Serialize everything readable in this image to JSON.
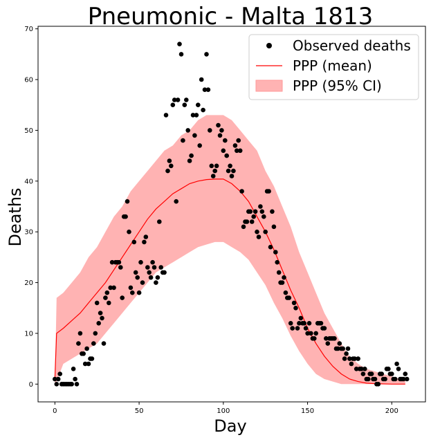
{
  "chart_data": {
    "type": "scatter",
    "title": "Pneumonic - Malta 1813",
    "xlabel": "Day",
    "ylabel": "Deaths",
    "xlim": [
      -10,
      220
    ],
    "ylim": [
      -3.5,
      70.5
    ],
    "xticks": [
      0,
      50,
      100,
      150,
      200
    ],
    "yticks": [
      0,
      10,
      20,
      30,
      40,
      50,
      60,
      70
    ],
    "grid": false,
    "legend_position": "top-right",
    "legend": [
      {
        "label": "Observed deaths",
        "kind": "marker",
        "color": "#000000"
      },
      {
        "label": "PPP (mean)",
        "kind": "line",
        "color": "#ff0000"
      },
      {
        "label": "PPP (95% CI)",
        "kind": "band",
        "color": "#ff9999"
      }
    ],
    "series": [
      {
        "name": "Observed deaths",
        "kind": "scatter",
        "color": "#000000",
        "x": [
          0,
          1,
          2,
          3,
          4,
          5,
          6,
          7,
          8,
          9,
          10,
          11,
          12,
          13,
          14,
          15,
          16,
          17,
          18,
          19,
          20,
          21,
          22,
          23,
          24,
          25,
          26,
          27,
          28,
          29,
          30,
          31,
          32,
          33,
          34,
          35,
          36,
          37,
          38,
          39,
          40,
          41,
          42,
          43,
          44,
          45,
          46,
          47,
          48,
          49,
          50,
          51,
          52,
          53,
          54,
          55,
          56,
          57,
          58,
          59,
          60,
          61,
          62,
          63,
          64,
          65,
          66,
          67,
          68,
          69,
          70,
          71,
          72,
          73,
          74,
          75,
          76,
          77,
          78,
          79,
          80,
          81,
          82,
          83,
          84,
          85,
          86,
          87,
          88,
          89,
          90,
          91,
          92,
          93,
          94,
          95,
          96,
          97,
          98,
          99,
          100,
          101,
          102,
          103,
          104,
          105,
          106,
          107,
          108,
          109,
          110,
          111,
          112,
          113,
          114,
          115,
          116,
          117,
          118,
          119,
          120,
          121,
          122,
          123,
          124,
          125,
          126,
          127,
          128,
          129,
          130,
          131,
          132,
          133,
          134,
          135,
          136,
          137,
          138,
          139,
          140,
          141,
          142,
          143,
          144,
          145,
          146,
          147,
          148,
          149,
          150,
          151,
          152,
          153,
          154,
          155,
          156,
          157,
          158,
          159,
          160,
          161,
          162,
          163,
          164,
          165,
          166,
          167,
          168,
          169,
          170,
          171,
          172,
          173,
          174,
          175,
          176,
          177,
          178,
          179,
          180,
          181,
          182,
          183,
          184,
          185,
          186,
          187,
          188,
          189,
          190,
          191,
          192,
          193,
          194,
          195,
          196,
          197,
          198,
          199,
          200,
          201,
          202,
          203,
          204,
          205,
          206,
          207,
          208,
          209
        ],
        "y": [
          1,
          0,
          1,
          2,
          0,
          0,
          0,
          0,
          0,
          0,
          0,
          3,
          1,
          0,
          8,
          10,
          6,
          6,
          4,
          7,
          4,
          5,
          5,
          8,
          10,
          16,
          12,
          14,
          13,
          8,
          17,
          18,
          16,
          19,
          24,
          19,
          24,
          24,
          24,
          23,
          17,
          33,
          33,
          36,
          30,
          19,
          18,
          28,
          22,
          21,
          18,
          24,
          20,
          28,
          29,
          23,
          22,
          21,
          24,
          23,
          20,
          21,
          32,
          23,
          22,
          22,
          53,
          42,
          44,
          43,
          55,
          56,
          36,
          56,
          67,
          65,
          48,
          55,
          56,
          50,
          44,
          45,
          53,
          49,
          53,
          55,
          47,
          60,
          54,
          58,
          65,
          58,
          50,
          43,
          41,
          42,
          43,
          51,
          49,
          50,
          46,
          48,
          45,
          42,
          43,
          41,
          42,
          47,
          46,
          48,
          46,
          38,
          31,
          32,
          32,
          34,
          34,
          32,
          33,
          34,
          30,
          29,
          35,
          34,
          33,
          30,
          38,
          38,
          27,
          34,
          31,
          26,
          24,
          22,
          20,
          20,
          21,
          18,
          17,
          17,
          12,
          11,
          16,
          15,
          11,
          12,
          13,
          12,
          12,
          11,
          10,
          12,
          10,
          9,
          9,
          10,
          12,
          12,
          12,
          11,
          11,
          9,
          8,
          9,
          9,
          9,
          9,
          7,
          7,
          8,
          7,
          7,
          5,
          6,
          7,
          5,
          4,
          5,
          5,
          3,
          5,
          3,
          3,
          2,
          3,
          1,
          1,
          2,
          2,
          1,
          1,
          0,
          0,
          2,
          2,
          1,
          1,
          3,
          3,
          2,
          2,
          1,
          1,
          4,
          3,
          1,
          1,
          1,
          2,
          1
        ]
      },
      {
        "name": "PPP (mean)",
        "kind": "line",
        "color": "#ff0000",
        "x": [
          0,
          1,
          5,
          10,
          15,
          20,
          25,
          30,
          35,
          40,
          45,
          50,
          55,
          60,
          65,
          70,
          75,
          80,
          85,
          90,
          95,
          100,
          105,
          110,
          115,
          120,
          125,
          130,
          135,
          140,
          145,
          150,
          155,
          160,
          165,
          170,
          175,
          180,
          185,
          190,
          195,
          200,
          205,
          208
        ],
        "y": [
          1,
          10,
          11,
          12.5,
          14,
          16,
          18,
          20,
          22.5,
          25,
          27.5,
          30,
          32.5,
          34.5,
          36,
          37.5,
          38.5,
          39.5,
          40,
          40.3,
          40.4,
          40.4,
          39.5,
          38,
          36,
          33,
          30,
          26.5,
          22.5,
          18.5,
          15,
          11,
          8,
          5.5,
          3.5,
          2,
          1,
          0.5,
          0.2,
          0.1,
          0.05,
          0,
          0,
          0
        ]
      },
      {
        "name": "PPP (95% CI)",
        "kind": "band",
        "color": "#ff9999",
        "x": [
          0,
          1,
          5,
          10,
          15,
          20,
          25,
          30,
          35,
          40,
          45,
          50,
          55,
          60,
          65,
          70,
          75,
          80,
          85,
          90,
          95,
          100,
          105,
          110,
          115,
          120,
          125,
          130,
          135,
          140,
          145,
          150,
          155,
          160,
          165,
          170,
          175,
          180,
          185,
          190,
          195,
          200,
          205,
          208
        ],
        "lower": [
          0,
          0.5,
          4,
          5,
          6,
          7,
          8,
          10,
          12,
          14,
          16,
          18,
          20,
          22,
          23,
          24,
          25,
          26,
          27,
          27.5,
          28,
          28,
          27,
          26,
          24.5,
          22,
          19.5,
          16,
          13,
          9.5,
          6.5,
          4,
          2,
          1,
          0.5,
          0,
          0,
          0,
          0,
          0,
          0,
          0,
          0,
          0
        ],
        "upper": [
          0,
          17,
          18,
          20,
          22,
          25,
          27,
          30,
          33,
          35,
          38,
          40,
          42,
          44,
          46,
          47,
          49,
          50,
          52,
          53,
          53,
          53,
          52,
          50,
          48,
          46,
          42,
          39,
          35,
          31,
          26,
          22,
          18,
          14,
          11,
          8,
          5.5,
          4,
          3,
          2.5,
          2,
          1.5,
          1,
          1
        ]
      }
    ]
  }
}
